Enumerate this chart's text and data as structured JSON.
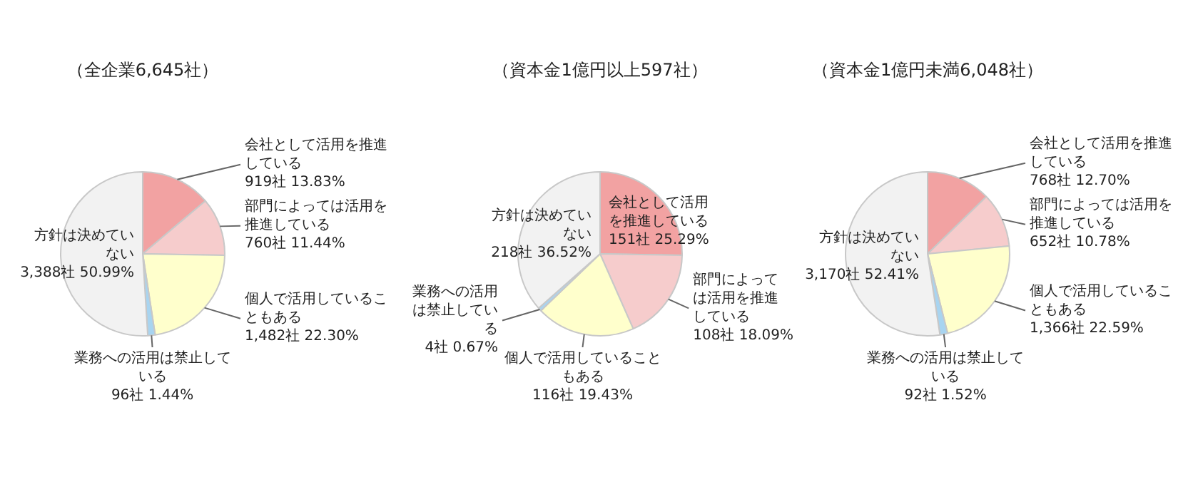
{
  "chart_data": [
    {
      "type": "pie",
      "title": "（全企業6,645社）",
      "categories": [
        "会社として活用を推進している",
        "部門によっては活用を推進している",
        "個人で活用していることもある",
        "業務への活用は禁止している",
        "方針は決めていない"
      ],
      "values": [
        919,
        760,
        1482,
        96,
        3388
      ],
      "value_labels": [
        "919社 13.83%",
        "760社 11.44%",
        "1,482社 22.30%",
        "96社 1.44%",
        "3,388社 50.99%"
      ],
      "colors": [
        "#f2a2a2",
        "#f6cccc",
        "#ffffcc",
        "#a8d4f0",
        "#f2f2f2"
      ],
      "legend": false
    },
    {
      "type": "pie",
      "title": "（資本金1億円以上597社）",
      "categories": [
        "会社として活用を推進している",
        "部門によっては活用を推進している",
        "個人で活用していることもある",
        "業務への活用は禁止している",
        "方針は決めていない"
      ],
      "values": [
        151,
        108,
        116,
        4,
        218
      ],
      "value_labels": [
        "151社 25.29%",
        "108社 18.09%",
        "116社 19.43%",
        "4社 0.67%",
        "218社 36.52%"
      ],
      "colors": [
        "#f2a2a2",
        "#f6cccc",
        "#ffffcc",
        "#a8d4f0",
        "#f2f2f2"
      ],
      "legend": false
    },
    {
      "type": "pie",
      "title": "（資本金1億円未満6,048社）",
      "categories": [
        "会社として活用を推進している",
        "部門によっては活用を推進している",
        "個人で活用していることもある",
        "業務への活用は禁止している",
        "方針は決めていない"
      ],
      "values": [
        768,
        652,
        1366,
        92,
        3170
      ],
      "value_labels": [
        "768社 12.70%",
        "652社 10.78%",
        "1,366社 22.59%",
        "92社 1.52%",
        "3,170社 52.41%"
      ],
      "colors": [
        "#f2a2a2",
        "#f6cccc",
        "#ffffcc",
        "#a8d4f0",
        "#f2f2f2"
      ],
      "legend": false
    }
  ]
}
